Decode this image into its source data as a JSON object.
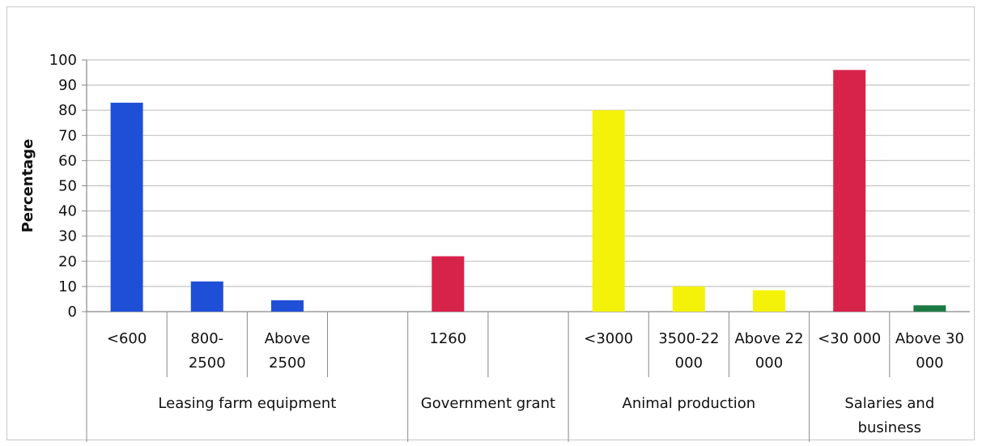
{
  "chart_data": {
    "type": "bar",
    "ylabel": "Percentage",
    "xlabel": "",
    "ylim": [
      0,
      100
    ],
    "yticks": [
      0,
      10,
      20,
      30,
      40,
      50,
      60,
      70,
      80,
      90,
      100
    ],
    "grid": true,
    "categories": [
      [
        "<600"
      ],
      [
        "800-",
        "2500"
      ],
      [
        "Above",
        "2500"
      ],
      [
        ""
      ],
      [
        "1260"
      ],
      [
        ""
      ],
      [
        "<3000"
      ],
      [
        "3500-22",
        "000"
      ],
      [
        "Above 22",
        "000"
      ],
      [
        "<30 000"
      ],
      [
        "Above 30",
        "000"
      ]
    ],
    "values": [
      83,
      12,
      4.5,
      null,
      22,
      null,
      80,
      10,
      8.5,
      96,
      2.5
    ],
    "bar_colors": [
      "#1f4fd6",
      "#1f4fd6",
      "#1f4fd6",
      null,
      "#d7234a",
      null,
      "#f5f20a",
      "#f5f20a",
      "#f5f20a",
      "#d7234a",
      "#1e7a45"
    ],
    "groups": [
      {
        "label": [
          "Leasing farm equipment"
        ],
        "start": 0,
        "end": 3
      },
      {
        "label": [
          "Government grant"
        ],
        "start": 4,
        "end": 5
      },
      {
        "label": [
          "Animal production"
        ],
        "start": 6,
        "end": 8
      },
      {
        "label": [
          "Salaries and",
          "business"
        ],
        "start": 9,
        "end": 10
      }
    ]
  }
}
